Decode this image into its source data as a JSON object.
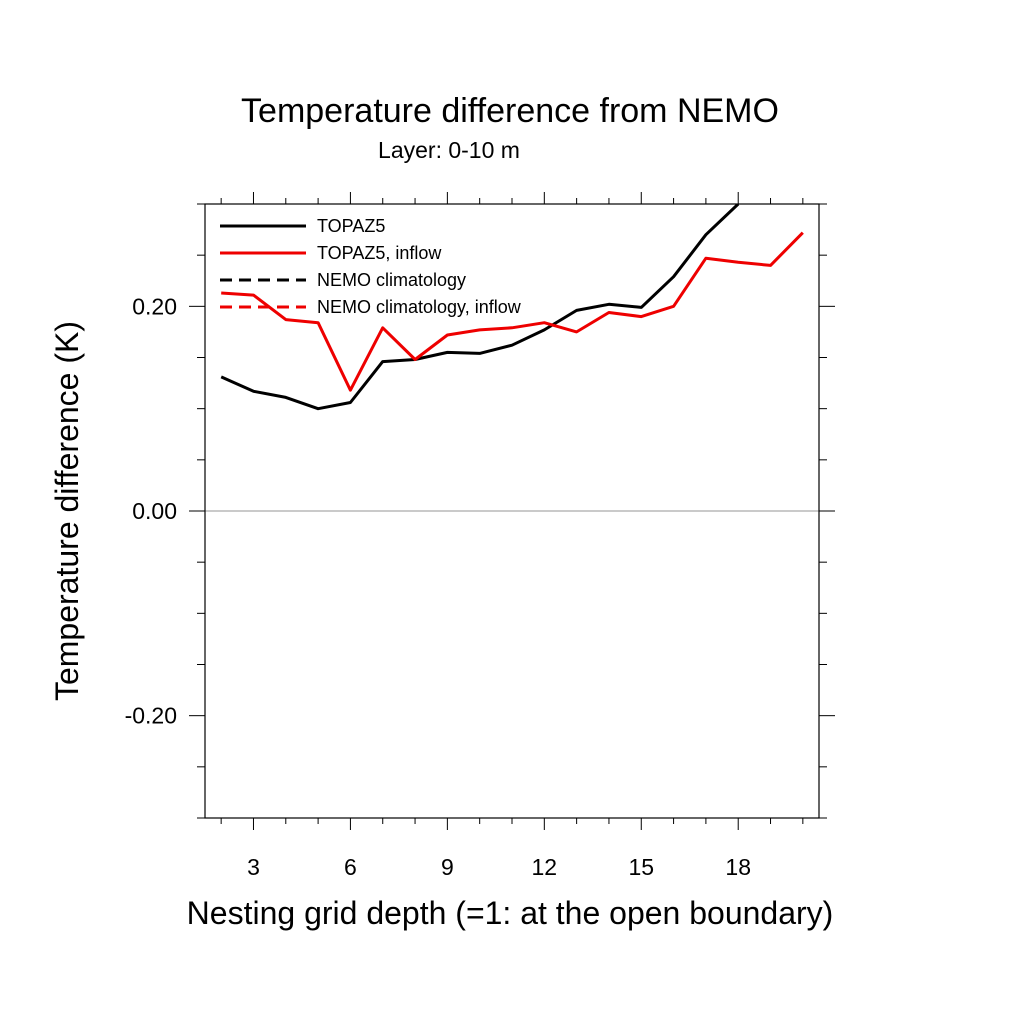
{
  "chart_data": {
    "type": "line",
    "title": "Temperature difference from NEMO",
    "subtitle": "Layer: 0-10 m",
    "xlabel": "Nesting grid depth (=1: at the open boundary)",
    "ylabel": "Temperature difference (K)",
    "xlim": [
      1.5,
      20.5
    ],
    "ylim": [
      -0.3,
      0.3
    ],
    "x_ticks": [
      3,
      6,
      9,
      12,
      15,
      18
    ],
    "x_tick_labels": [
      "3",
      "6",
      "9",
      "12",
      "15",
      "18"
    ],
    "y_ticks": [
      -0.2,
      0.0,
      0.2
    ],
    "y_tick_labels": [
      "-0.20",
      "0.00",
      "0.20"
    ],
    "grid": false,
    "zero_line": true,
    "legend_position": "top-left",
    "series": [
      {
        "name": "TOPAZ5",
        "color": "#000000",
        "dash": "solid",
        "x": [
          2,
          3,
          4,
          5,
          6,
          7,
          8,
          9,
          10,
          11,
          12,
          13,
          14,
          15,
          16,
          17,
          18
        ],
        "values": [
          0.131,
          0.117,
          0.111,
          0.1,
          0.106,
          0.146,
          0.148,
          0.155,
          0.154,
          0.162,
          0.177,
          0.196,
          0.202,
          0.199,
          0.229,
          0.27,
          0.3
        ]
      },
      {
        "name": "TOPAZ5, inflow",
        "color": "#ee0000",
        "dash": "solid",
        "x": [
          2,
          3,
          4,
          5,
          6,
          7,
          8,
          9,
          10,
          11,
          12,
          13,
          14,
          15,
          16,
          17,
          18,
          19,
          20
        ],
        "values": [
          0.213,
          0.211,
          0.187,
          0.184,
          0.118,
          0.179,
          0.148,
          0.172,
          0.177,
          0.179,
          0.184,
          0.175,
          0.194,
          0.19,
          0.2,
          0.247,
          0.243,
          0.24,
          0.272
        ]
      },
      {
        "name": "NEMO climatology",
        "color": "#000000",
        "dash": "dashed",
        "x": [],
        "values": []
      },
      {
        "name": "NEMO climatology, inflow",
        "color": "#ee0000",
        "dash": "dashed",
        "x": [],
        "values": []
      }
    ]
  }
}
